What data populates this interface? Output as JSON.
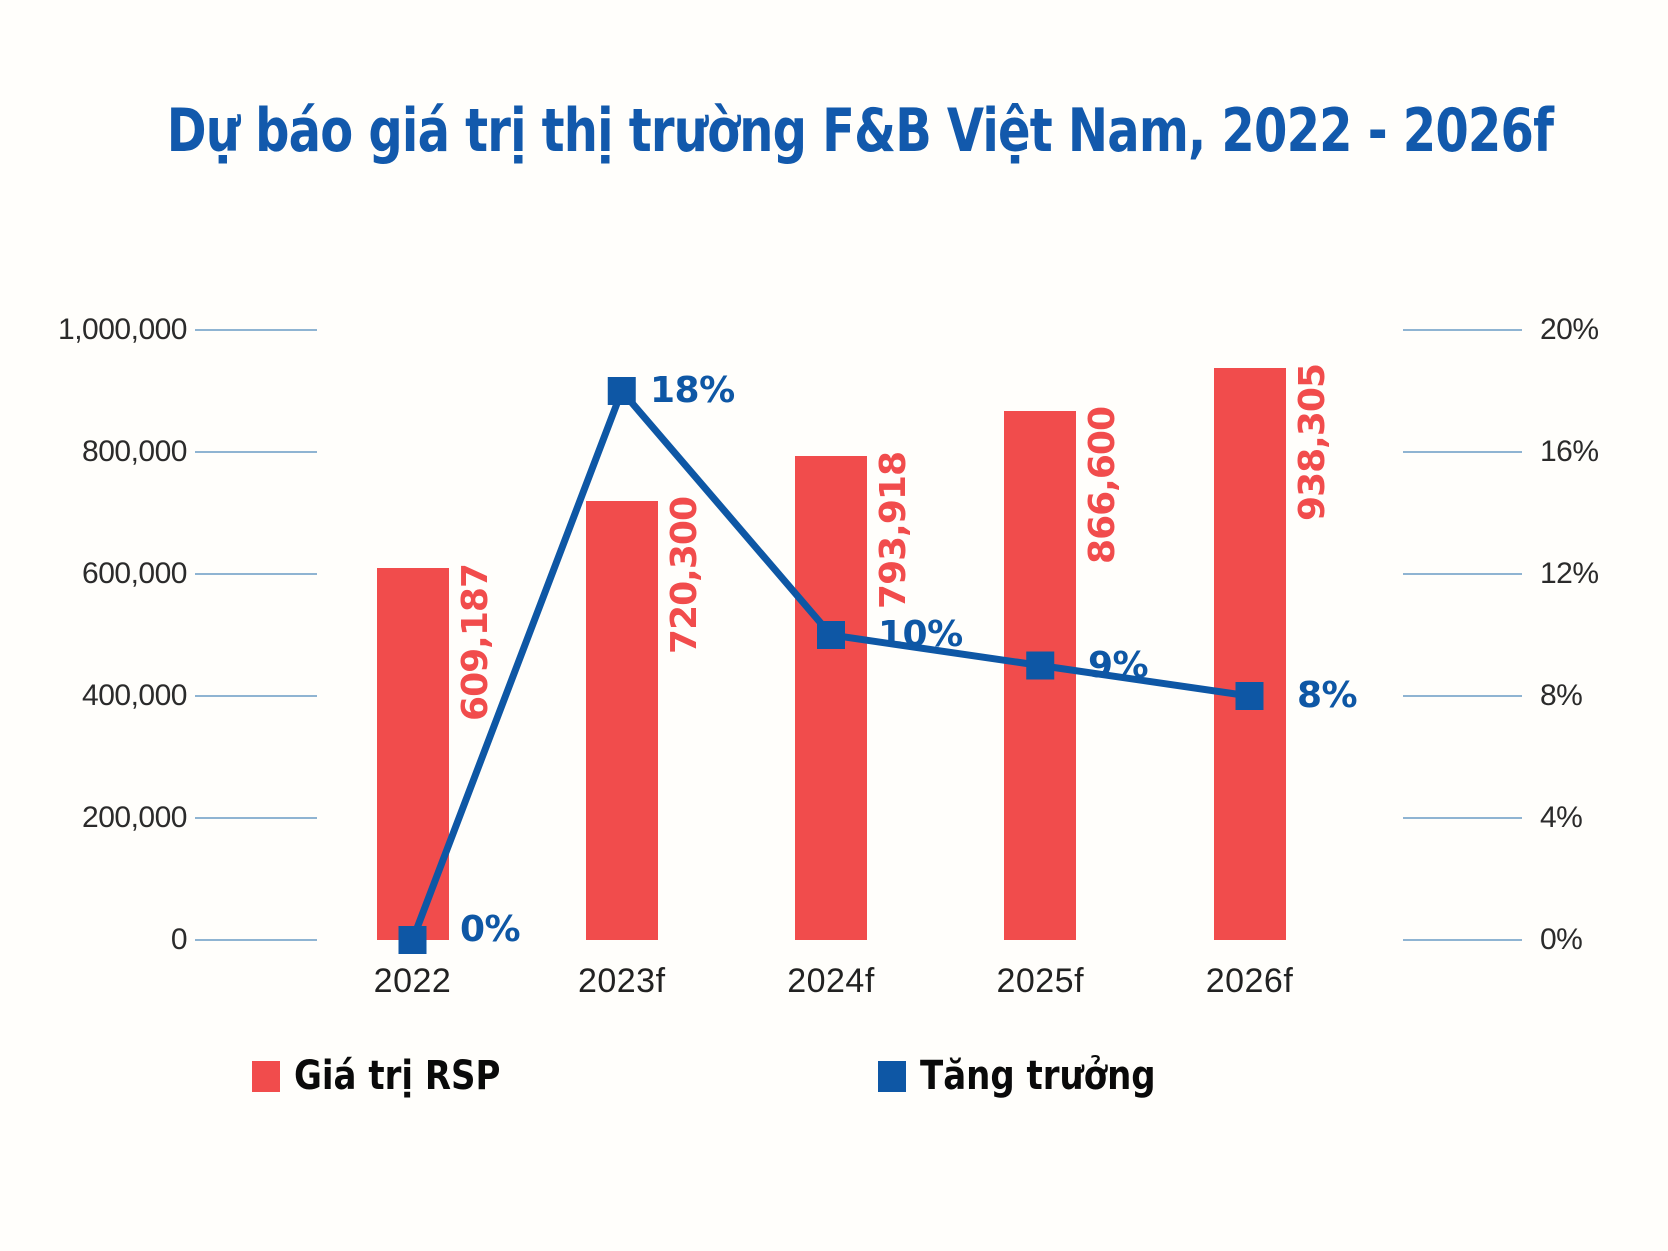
{
  "title": {
    "text": "Dự báo giá trị thị trường F&B Việt Nam, 2022 - 2026f"
  },
  "colors": {
    "background": "#FFFEFB",
    "bar_red": "#F14C4C",
    "line_blue": "#0E57A5",
    "title_blue": "#1259AC",
    "tick_line": "#8FB4D2",
    "axis_text": "#2B2B2B",
    "legend_text": "#0A0A0A"
  },
  "legend": {
    "items": [
      {
        "label": "Giá trị RSP",
        "swatch": "bar_red"
      },
      {
        "label": "Tăng trưởng",
        "swatch": "line_blue"
      }
    ]
  },
  "chart_data": {
    "type": "combo_bar_line",
    "title": "Dự báo giá trị thị trường F&B Việt Nam, 2022 - 2026f",
    "categories": [
      "2022",
      "2023f",
      "2024f",
      "2025f",
      "2026f"
    ],
    "series": [
      {
        "name": "Giá trị RSP",
        "type": "bar",
        "axis": "left",
        "color": "#F14C4C",
        "values": [
          609187,
          720300,
          793918,
          866600,
          938305
        ],
        "data_labels": [
          "609,187",
          "720,300",
          "793,918",
          "866,600",
          "938,305"
        ]
      },
      {
        "name": "Tăng trưởng",
        "type": "line",
        "axis": "right",
        "color": "#0E57A5",
        "values": [
          0,
          18,
          10,
          9,
          8
        ],
        "data_labels": [
          "0%",
          "18%",
          "10%",
          "9%",
          "8%"
        ]
      }
    ],
    "left_axis": {
      "min": 0,
      "max": 1000000,
      "tick_labels": [
        "0",
        "200,000",
        "400,000",
        "600,000",
        "800,000",
        "1,000,000"
      ]
    },
    "right_axis": {
      "min": 0,
      "max": 20,
      "tick_labels": [
        "0%",
        "4%",
        "8%",
        "12%",
        "16%",
        "20%"
      ]
    },
    "grid": "short-ticks-both-sides",
    "legend_position": "bottom"
  }
}
